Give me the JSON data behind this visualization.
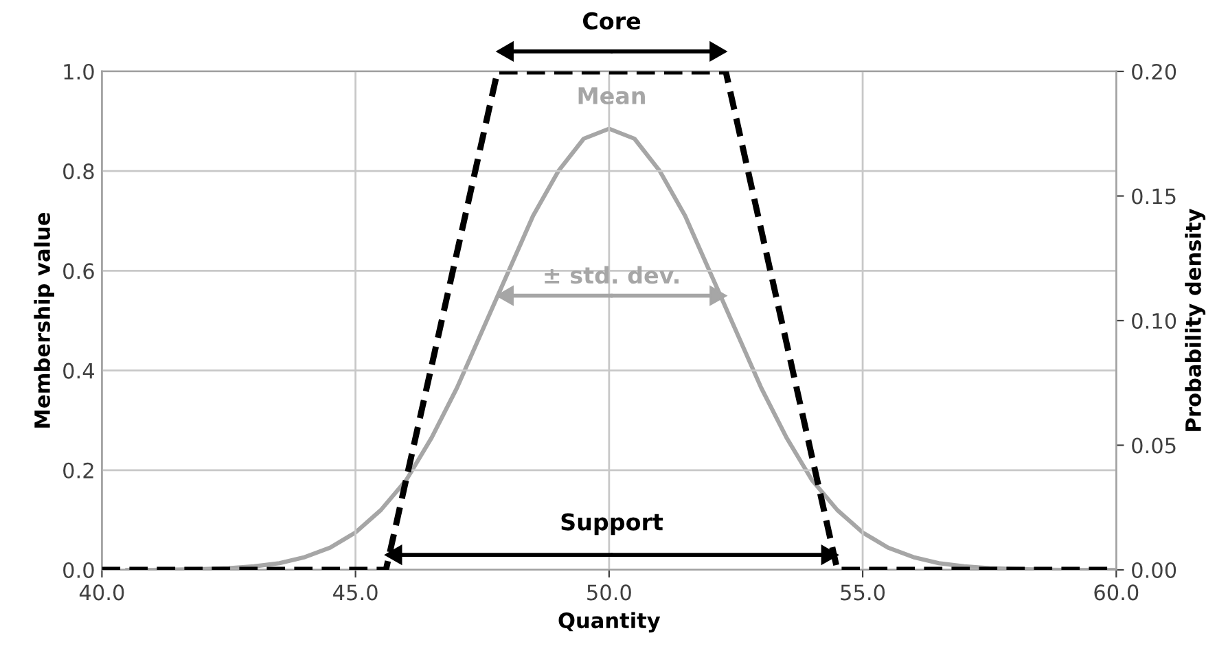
{
  "chart_data": {
    "type": "line",
    "xlabel": "Quantity",
    "ylabel": "Membership value",
    "y2label": "Probability density",
    "xlim": [
      40,
      60
    ],
    "xticks": [
      {
        "value": 40,
        "label": "40.0"
      },
      {
        "value": 45,
        "label": "45.0"
      },
      {
        "value": 50,
        "label": "50.0"
      },
      {
        "value": 55,
        "label": "55.0"
      },
      {
        "value": 60,
        "label": "60.0"
      }
    ],
    "ylim": [
      0,
      1
    ],
    "yticks": [
      {
        "value": 0,
        "label": "0.0"
      },
      {
        "value": 0.2,
        "label": "0.2"
      },
      {
        "value": 0.4,
        "label": "0.4"
      },
      {
        "value": 0.6,
        "label": "0.6"
      },
      {
        "value": 0.8,
        "label": "0.8"
      },
      {
        "value": 1,
        "label": "1.0"
      }
    ],
    "y2lim": [
      0,
      0.2
    ],
    "y2ticks": [
      {
        "value": 0,
        "label": "0.00"
      },
      {
        "value": 0.05,
        "label": "0.05"
      },
      {
        "value": 0.1,
        "label": "0.10"
      },
      {
        "value": 0.15,
        "label": "0.15"
      },
      {
        "value": 0.2,
        "label": "0.20"
      }
    ],
    "grid": true,
    "legend": false,
    "marker": "none",
    "series": [
      {
        "color": "#000000",
        "line_style": "dashed",
        "x": [
          40,
          45.6,
          47.8,
          52.3,
          54.5,
          60
        ],
        "values": [
          0,
          0,
          1,
          1,
          0,
          0
        ]
      },
      {
        "color": "#a6a6a6",
        "line_style": "solid",
        "axis": "y2",
        "x": [
          40.5,
          41,
          41.5,
          42,
          42.5,
          43,
          43.5,
          44,
          44.5,
          45,
          45.5,
          46,
          46.5,
          47,
          47.5,
          48,
          48.5,
          49,
          49.5,
          50,
          50.5,
          51,
          51.5,
          52,
          52.5,
          53,
          53.5,
          54,
          54.5,
          55,
          55.5,
          56,
          56.5,
          57,
          57.5,
          58,
          58.5,
          59,
          59.5,
          60
        ],
        "values": [
          0.0,
          0.0,
          0.0001,
          0.0003,
          0.0007,
          0.0014,
          0.0027,
          0.0051,
          0.0089,
          0.015,
          0.024,
          0.036,
          0.053,
          0.073,
          0.096,
          0.119,
          0.142,
          0.16,
          0.173,
          0.177,
          0.173,
          0.16,
          0.142,
          0.119,
          0.096,
          0.073,
          0.053,
          0.036,
          0.024,
          0.015,
          0.0089,
          0.0051,
          0.0027,
          0.0014,
          0.0007,
          0.0003,
          0.0001,
          0.0,
          0.0,
          0.0
        ]
      }
    ],
    "annotations": [
      "Core",
      "Mean",
      "± std. dev.",
      "Support"
    ]
  }
}
